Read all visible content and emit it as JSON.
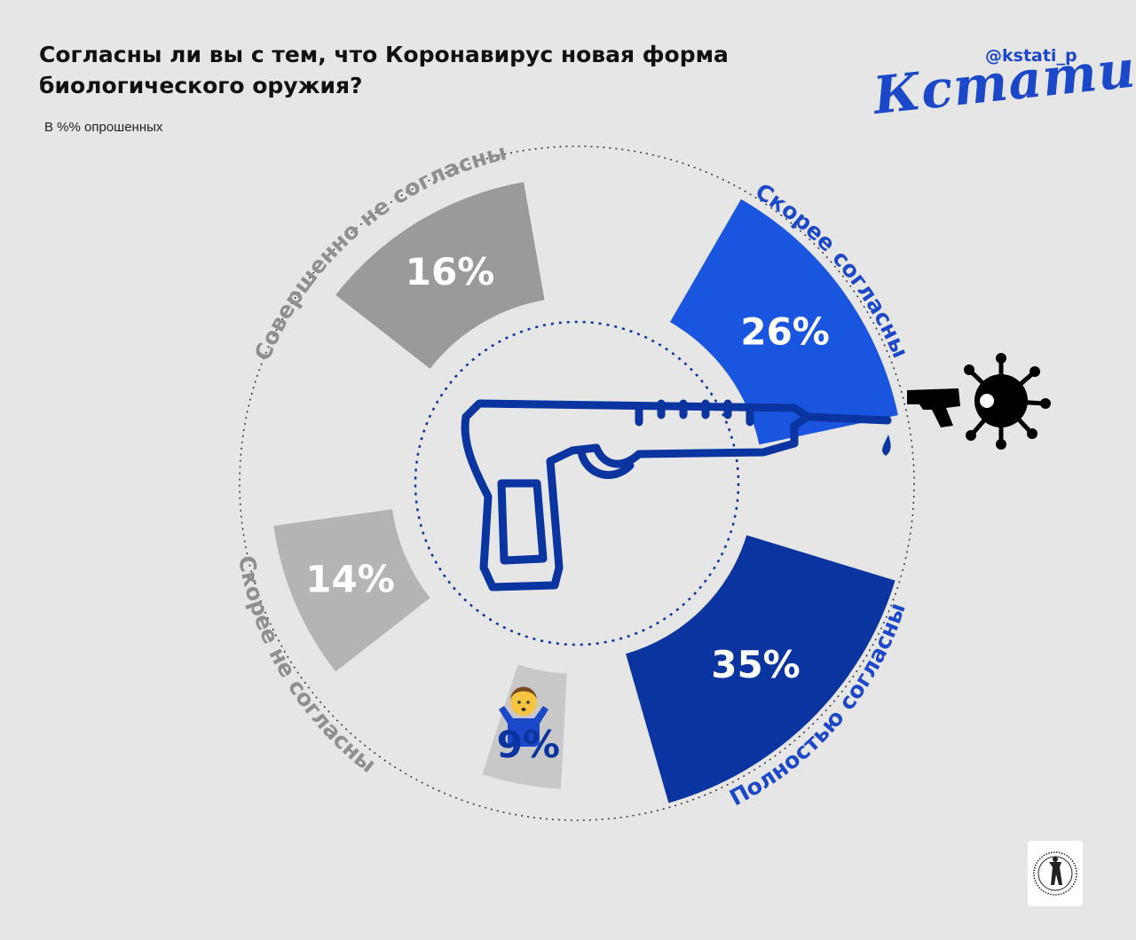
{
  "header": {
    "title": "Согласны ли вы с тем, что Коронавирус новая форма биологического оружия?",
    "subtitle": "В %% опрошенных",
    "handle": "@kstati_p",
    "brand": "Кстати,"
  },
  "icons": {
    "center": "pistol-syringe-icon",
    "virus": "virus-pistol-icon",
    "shrug": "man-shrugging-icon",
    "stamp": "stamp-logo-icon"
  },
  "colors": {
    "background": "#e6e6e6",
    "agree_rather": "#1a55e0",
    "agree_fully": "#0a35a0",
    "disagree_rather": "#b4b4b4",
    "disagree_fully": "#9a9a9a",
    "unsure": "#c8c8c8",
    "label_blue": "#1a48c9",
    "label_grey": "#8f8f8f"
  },
  "chart_data": {
    "type": "pie",
    "unit": "%",
    "slices": [
      {
        "label": "Скорее согласны",
        "value": 26,
        "value_label": "26%"
      },
      {
        "label": "Полностью согласны",
        "value": 35,
        "value_label": "35%"
      },
      {
        "label": "",
        "value": 9,
        "value_label": "9%"
      },
      {
        "label": "Скорее не согласны",
        "value": 14,
        "value_label": "14%"
      },
      {
        "label": "Совершенно не согласны",
        "value": 16,
        "value_label": "16%"
      }
    ]
  }
}
